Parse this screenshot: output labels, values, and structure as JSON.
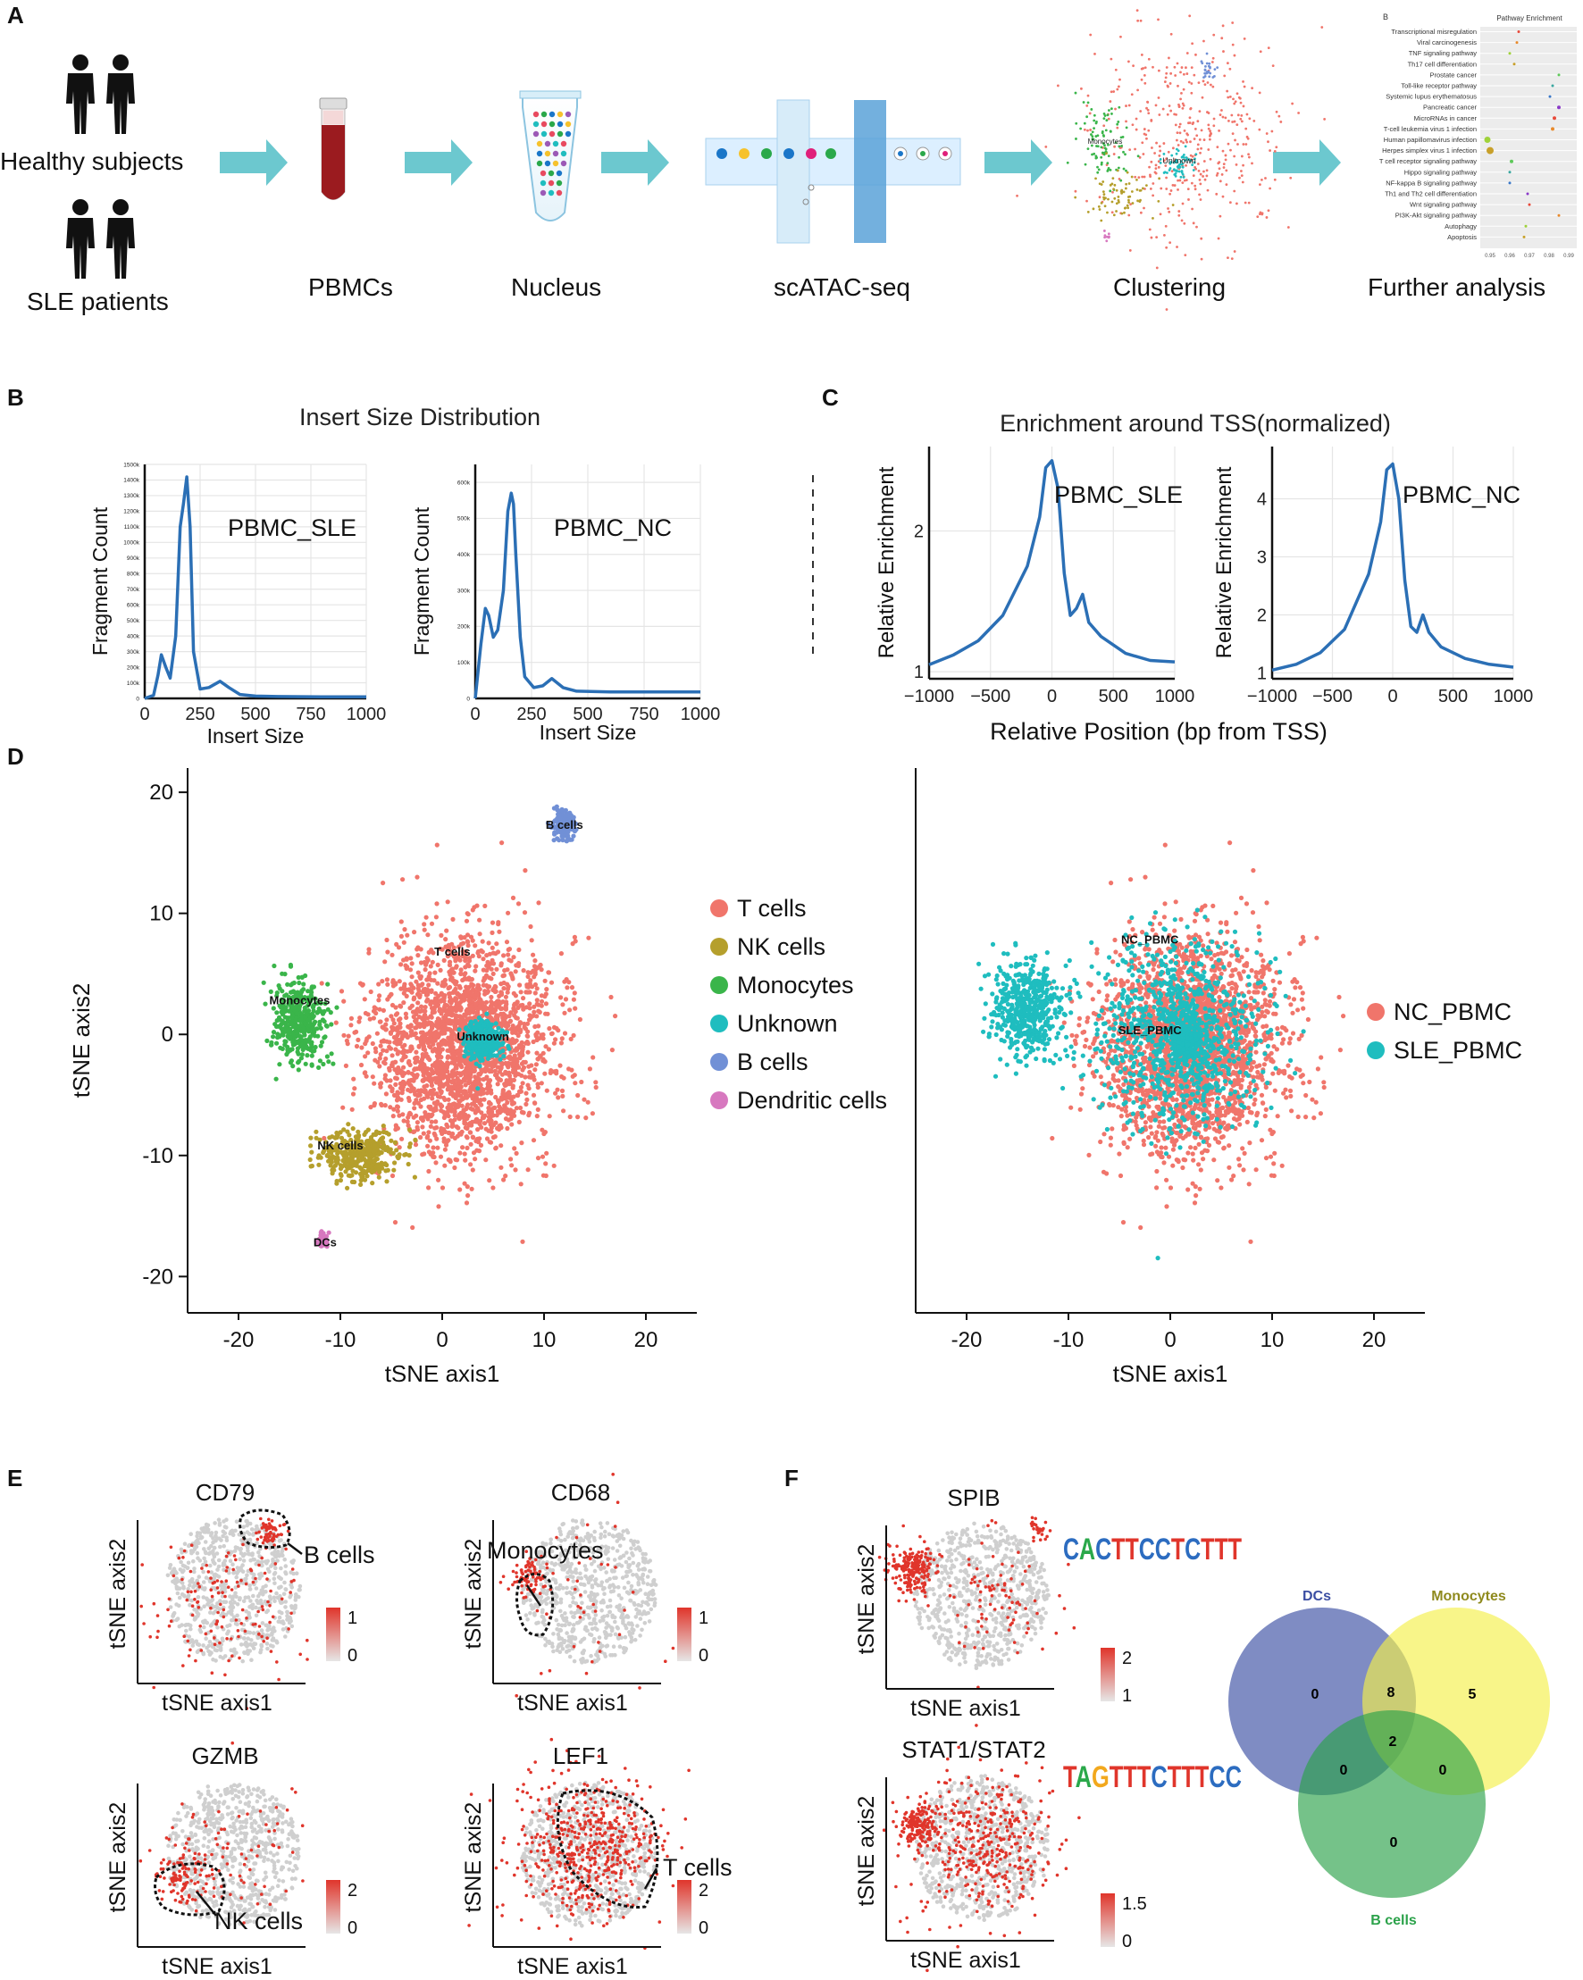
{
  "panels": {
    "A": "A",
    "B": "B",
    "C": "C",
    "D": "D",
    "E": "E",
    "F": "F"
  },
  "workflow": {
    "healthy": "Healthy subjects",
    "sle": "SLE patients",
    "pbmcs": "PBMCs",
    "nucleus": "Nucleus",
    "scatac": "scATAC-seq",
    "clustering": "Clustering",
    "further": "Further analysis",
    "mini_cluster_unknown": "Unknown",
    "mini_cluster_monocytes": "Monocytes"
  },
  "pathway": {
    "panel_letter": "B",
    "title": "Pathway Enrichment",
    "terms": [
      "Transcriptional misregulation",
      "Viral carcinogenesis",
      "TNF signaling pathway",
      "Th17 cell differentiation",
      "Prostate cancer",
      "Toll-like receptor pathway",
      "Systemic lupus erythematosus",
      "Pancreatic cancer",
      "MicroRNAs in cancer",
      "T-cell leukemia virus 1 infection",
      "Human papillomavirus infection",
      "Herpes simplex virus 1 infection",
      "T cell receptor signaling pathway",
      "Hippo signaling pathway",
      "NF-kappa B signaling pathway",
      "Th1 and Th2 cell differentiation",
      "Wnt signaling pathway",
      "PI3K-Akt signaling pathway",
      "Autophagy",
      "Apoptosis"
    ],
    "x_ticks": [
      "0.95",
      "0.96",
      "0.97",
      "0.98",
      "0.99"
    ]
  },
  "chart_data": [
    {
      "type": "line",
      "panel": "B",
      "suptitle": "Insert Size Distribution",
      "title": "PBMC_SLE",
      "xlabel": "Insert Size",
      "ylabel": "Fragment Count",
      "xticks": [
        "0",
        "250",
        "500",
        "750",
        "1000"
      ],
      "yticks": [
        "0",
        "100k",
        "200k",
        "300k",
        "400k",
        "500k",
        "600k",
        "700k",
        "800k",
        "900k",
        "1000k",
        "1100k",
        "1200k",
        "1300k",
        "1400k",
        "1500k"
      ],
      "xlim": [
        0,
        1000
      ],
      "ylim": [
        0,
        1500000
      ],
      "x": [
        0,
        40,
        60,
        75,
        95,
        115,
        140,
        160,
        175,
        190,
        205,
        220,
        250,
        290,
        340,
        380,
        430,
        500,
        600,
        800,
        1000
      ],
      "y": [
        0,
        20000,
        150000,
        280000,
        200000,
        130000,
        400000,
        1100000,
        1250000,
        1420000,
        1100000,
        300000,
        60000,
        70000,
        110000,
        70000,
        25000,
        15000,
        12000,
        10000,
        10000
      ]
    },
    {
      "type": "line",
      "panel": "B",
      "title": "PBMC_NC",
      "xlabel": "Insert Size",
      "ylabel": "Fragment Count",
      "xticks": [
        "0",
        "250",
        "500",
        "750",
        "1000"
      ],
      "yticks": [
        "0",
        "100k",
        "200k",
        "300k",
        "400k",
        "500k",
        "600k"
      ],
      "xlim": [
        0,
        1000
      ],
      "ylim": [
        0,
        650000
      ],
      "x": [
        0,
        25,
        45,
        60,
        80,
        100,
        125,
        145,
        160,
        170,
        180,
        200,
        220,
        260,
        300,
        340,
        390,
        450,
        600,
        800,
        1000
      ],
      "y": [
        0,
        150000,
        250000,
        230000,
        170000,
        190000,
        300000,
        520000,
        570000,
        540000,
        400000,
        170000,
        60000,
        30000,
        35000,
        55000,
        30000,
        20000,
        18000,
        18000,
        18000
      ]
    },
    {
      "type": "line",
      "panel": "C",
      "suptitle": "Enrichment around TSS(normalized)",
      "title": "PBMC_SLE",
      "xlabel": "Relative Position (bp from TSS)",
      "ylabel": "Relative Enrichment",
      "xticks": [
        "−1000",
        "−500",
        "0",
        "500",
        "1000"
      ],
      "yticks": [
        "1",
        "2"
      ],
      "xlim": [
        -1000,
        1000
      ],
      "ylim": [
        0.95,
        2.6
      ],
      "x": [
        -1000,
        -800,
        -600,
        -400,
        -200,
        -100,
        -50,
        0,
        50,
        100,
        150,
        200,
        250,
        300,
        400,
        600,
        800,
        1000
      ],
      "y": [
        1.05,
        1.12,
        1.22,
        1.4,
        1.75,
        2.1,
        2.45,
        2.5,
        2.3,
        1.7,
        1.4,
        1.45,
        1.55,
        1.35,
        1.25,
        1.13,
        1.08,
        1.07
      ]
    },
    {
      "type": "line",
      "panel": "C",
      "title": "PBMC_NC",
      "xlabel": "Relative Position (bp from TSS)",
      "ylabel": "Relative Enrichment",
      "xticks": [
        "−1000",
        "−500",
        "0",
        "500",
        "1000"
      ],
      "yticks": [
        "1",
        "2",
        "3",
        "4"
      ],
      "xlim": [
        -1000,
        1000
      ],
      "ylim": [
        0.9,
        4.9
      ],
      "x": [
        -1000,
        -800,
        -600,
        -400,
        -200,
        -100,
        -50,
        0,
        50,
        100,
        150,
        200,
        250,
        300,
        400,
        600,
        800,
        1000
      ],
      "y": [
        1.05,
        1.15,
        1.35,
        1.75,
        2.7,
        3.6,
        4.5,
        4.6,
        4.0,
        2.6,
        1.8,
        1.7,
        2.0,
        1.7,
        1.45,
        1.25,
        1.15,
        1.1
      ]
    },
    {
      "type": "scatter",
      "panel": "D",
      "title": "",
      "xlabel": "tSNE axis1",
      "ylabel": "tSNE axis2",
      "xticks": [
        "-20",
        "-10",
        "0",
        "10",
        "20"
      ],
      "yticks": [
        "20",
        "10",
        "0",
        "-10",
        "-20"
      ],
      "xlim": [
        -25,
        25
      ],
      "ylim": [
        -23,
        22
      ],
      "legend": [
        {
          "label": "T cells",
          "color": "#f0756b"
        },
        {
          "label": "NK cells",
          "color": "#b59f2c"
        },
        {
          "label": "Monocytes",
          "color": "#3ab54a"
        },
        {
          "label": "Unknown",
          "color": "#1fbdbf"
        },
        {
          "label": "B cells",
          "color": "#7190d6"
        },
        {
          "label": "Dendritic cells",
          "color": "#d778bf"
        }
      ],
      "cluster_labels": [
        {
          "label": "T cells",
          "x": 1,
          "y": 6.5
        },
        {
          "label": "Monocytes",
          "x": -14,
          "y": 2.5
        },
        {
          "label": "Unknown",
          "x": 4,
          "y": -0.5
        },
        {
          "label": "B cells",
          "x": 12,
          "y": 17
        },
        {
          "label": "NK cells",
          "x": -10,
          "y": -9.5
        },
        {
          "label": "DCs",
          "x": -11.5,
          "y": -17.5
        }
      ],
      "clusters": [
        {
          "name": "T cells",
          "color": "#f0756b",
          "cx": 2,
          "cy": -1,
          "sx": 8,
          "sy": 8,
          "n": 2400
        },
        {
          "name": "Monocytes",
          "color": "#3ab54a",
          "cx": -14,
          "cy": 1,
          "sx": 2.2,
          "sy": 3,
          "n": 380
        },
        {
          "name": "NK cells",
          "color": "#b59f2c",
          "cx": -8,
          "cy": -10,
          "sx": 3.5,
          "sy": 1.8,
          "n": 380
        },
        {
          "name": "Unknown",
          "color": "#1fbdbf",
          "cx": 4,
          "cy": -0.5,
          "sx": 1.6,
          "sy": 1.5,
          "n": 320
        },
        {
          "name": "B cells",
          "color": "#7190d6",
          "cx": 12,
          "cy": 17.5,
          "sx": 1,
          "sy": 1.3,
          "n": 140
        },
        {
          "name": "Dendritic cells",
          "color": "#d778bf",
          "cx": -11.8,
          "cy": -17,
          "sx": 0.5,
          "sy": 0.7,
          "n": 40
        }
      ]
    },
    {
      "type": "scatter",
      "panel": "D",
      "title": "",
      "xlabel": "tSNE axis1",
      "ylabel": "",
      "xticks": [
        "-20",
        "-10",
        "0",
        "10",
        "20"
      ],
      "xlim": [
        -25,
        25
      ],
      "ylim": [
        -23,
        22
      ],
      "legend": [
        {
          "label": "NC_PBMC",
          "color": "#f0756b"
        },
        {
          "label": "SLE_PBMC",
          "color": "#1fbdbf"
        }
      ],
      "cluster_labels": [
        {
          "label": "NC_PBMC",
          "x": -2,
          "y": 7.5
        },
        {
          "label": "SLE_PBMC",
          "x": -2,
          "y": 0
        }
      ],
      "clusters": [
        {
          "name": "NC_PBMC",
          "color": "#f0756b",
          "cx": 2,
          "cy": -1,
          "sx": 8,
          "sy": 8,
          "n": 2400
        },
        {
          "name": "SLE_PBMC",
          "color": "#1fbdbf",
          "cx": -14,
          "cy": 2,
          "sx": 3,
          "sy": 3.5,
          "n": 500
        },
        {
          "name": "SLE_PBMC",
          "color": "#1fbdbf",
          "cx": 1,
          "cy": 0,
          "sx": 7,
          "sy": 7,
          "n": 900
        },
        {
          "name": "SLE_PBMC",
          "color": "#1fbdbf",
          "cx": 1.5,
          "cy": -0.5,
          "sx": 1.5,
          "sy": 1.5,
          "n": 250
        }
      ]
    }
  ],
  "panelE": {
    "plots": [
      {
        "gene": "CD79",
        "cell_label": "B cells",
        "scale_max": "1",
        "scale_min": "0",
        "xlabel": "tSNE axis1",
        "ylabel": "tSNE axis2"
      },
      {
        "gene": "CD68",
        "cell_label": "Monocytes",
        "scale_max": "1",
        "scale_min": "0",
        "xlabel": "tSNE axis1",
        "ylabel": "tSNE axis2"
      },
      {
        "gene": "GZMB",
        "cell_label": "NK cells",
        "scale_max": "2",
        "scale_min": "0",
        "xlabel": "tSNE axis1",
        "ylabel": "tSNE axis2"
      },
      {
        "gene": "LEF1",
        "cell_label": "T cells",
        "scale_max": "2",
        "scale_min": "0",
        "xlabel": "tSNE axis1",
        "ylabel": "tSNE axis2"
      }
    ]
  },
  "panelF": {
    "plots": [
      {
        "motif": "SPIB",
        "scale_max": "2",
        "scale_min": "1",
        "xlabel": "tSNE axis1",
        "ylabel": "tSNE axis2"
      },
      {
        "motif": "STAT1/STAT2",
        "scale_max": "1.5",
        "scale_min": "0",
        "xlabel": "tSNE axis1",
        "ylabel": "tSNE axis2"
      }
    ],
    "logo1": "CACTTCCTCTTT",
    "logo2": "TAGTTTCTTTCC",
    "venn": {
      "sets": [
        {
          "name": "DCs",
          "color": "#3b4ea3"
        },
        {
          "name": "Monocytes",
          "color": "#8f8a1e"
        },
        {
          "name": "B cells",
          "color": "#2ba24a"
        }
      ],
      "counts": {
        "dcs_only": "0",
        "monocytes_only": "5",
        "bcells_only": "0",
        "dcs_monocytes": "8",
        "dcs_bcells": "0",
        "monocytes_bcells": "0",
        "all": "2"
      }
    }
  }
}
